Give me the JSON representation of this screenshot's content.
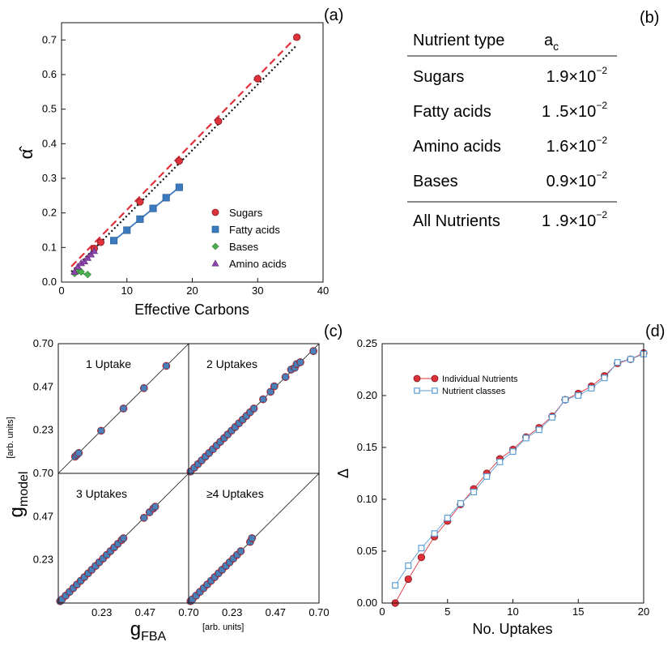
{
  "panel_labels": [
    "(a)",
    "(b)",
    "(c)",
    "(d)"
  ],
  "chart_data": [
    {
      "panel": "(a)",
      "type": "scatter",
      "xlabel": "Effective Carbons",
      "ylabel": "α̂",
      "xlim": [
        0,
        40
      ],
      "ylim": [
        0,
        0.75
      ],
      "xticks": [
        "0",
        "10",
        "20",
        "30",
        "40"
      ],
      "yticks": [
        "0.0",
        "0.1",
        "0.2",
        "0.3",
        "0.4",
        "0.5",
        "0.6",
        "0.7"
      ],
      "grid": false,
      "legend_position": "bottom-right",
      "series": [
        {
          "name": "Sugars",
          "marker": "circle",
          "color": "#e0303a",
          "x": [
            5,
            6,
            12,
            18,
            24,
            30,
            36
          ],
          "y": [
            0.097,
            0.115,
            0.232,
            0.35,
            0.465,
            0.588,
            0.708
          ]
        },
        {
          "name": "Fatty acids",
          "marker": "square",
          "color": "#3a7bbf",
          "x": [
            8,
            10,
            12,
            14,
            16,
            18
          ],
          "y": [
            0.12,
            0.15,
            0.182,
            0.213,
            0.244,
            0.274
          ]
        },
        {
          "name": "Bases",
          "marker": "diamond",
          "color": "#4caf50",
          "x": [
            2,
            2.5,
            3,
            4
          ],
          "y": [
            0.025,
            0.032,
            0.03,
            0.022
          ]
        },
        {
          "name": "Amino acids",
          "marker": "triangle",
          "color": "#8e44ad",
          "x": [
            2,
            2.5,
            3,
            3.5,
            4,
            4.5,
            5
          ],
          "y": [
            0.03,
            0.045,
            0.055,
            0.06,
            0.07,
            0.08,
            0.09
          ]
        }
      ],
      "fit_lines": [
        {
          "style": "dashed",
          "color": "#e0303a",
          "x": [
            1.5,
            36
          ],
          "y": [
            0.045,
            0.71
          ]
        },
        {
          "style": "dotted",
          "color": "#111111",
          "x": [
            1.5,
            36
          ],
          "y": [
            0.03,
            0.685
          ]
        },
        {
          "style": "solid",
          "color": "#3a7bbf",
          "x": [
            8,
            18
          ],
          "y": [
            0.12,
            0.274
          ]
        },
        {
          "style": "solid",
          "color": "#4caf50",
          "x": [
            2,
            4
          ],
          "y": [
            0.028,
            0.022
          ]
        }
      ]
    },
    {
      "panel": "(b)",
      "type": "table",
      "columns": [
        "Nutrient type",
        "a",
        "c"
      ],
      "rows": [
        {
          "name": "Sugars",
          "value": "1.9×10",
          "exp": "−2"
        },
        {
          "name": "Fatty acids",
          "value": "1 .5×10",
          "exp": "−2"
        },
        {
          "name": "Amino acids",
          "value": "1.6×10",
          "exp": "−2"
        },
        {
          "name": "Bases",
          "value": "0.9×10",
          "exp": "−2"
        }
      ],
      "total": {
        "name": "All Nutrients",
        "value": "1 .9×10",
        "exp": "−2"
      }
    },
    {
      "panel": "(c)",
      "type": "scatter",
      "xlabel_main": "g",
      "xlabel_sub": "FBA",
      "xlabel_unit": "[arb. units]",
      "ylabel_main": "g",
      "ylabel_sub": "model",
      "ylabel_unit": "[arb. units]",
      "lim": [
        0,
        0.7
      ],
      "ticks": [
        "0.23",
        "0.47",
        "0.70"
      ],
      "subplots": [
        {
          "title": "1 Uptake",
          "x": [
            0.09,
            0.1,
            0.11,
            0.23,
            0.35,
            0.46,
            0.58
          ],
          "y": [
            0.09,
            0.1,
            0.11,
            0.23,
            0.35,
            0.46,
            0.58
          ]
        },
        {
          "title": "2 Uptakes",
          "x": [
            0.01,
            0.03,
            0.05,
            0.07,
            0.09,
            0.11,
            0.13,
            0.15,
            0.17,
            0.19,
            0.21,
            0.23,
            0.25,
            0.27,
            0.29,
            0.31,
            0.33,
            0.35,
            0.4,
            0.44,
            0.46,
            0.52,
            0.55,
            0.57,
            0.58,
            0.6,
            0.67
          ],
          "y": [
            0.01,
            0.03,
            0.05,
            0.07,
            0.09,
            0.11,
            0.13,
            0.15,
            0.17,
            0.19,
            0.21,
            0.23,
            0.25,
            0.27,
            0.29,
            0.31,
            0.33,
            0.35,
            0.4,
            0.44,
            0.47,
            0.52,
            0.56,
            0.57,
            0.59,
            0.6,
            0.66
          ]
        },
        {
          "title": "3 Uptakes",
          "x": [
            0.01,
            0.02,
            0.04,
            0.06,
            0.08,
            0.1,
            0.12,
            0.14,
            0.16,
            0.18,
            0.2,
            0.22,
            0.24,
            0.26,
            0.28,
            0.3,
            0.32,
            0.34,
            0.35,
            0.46,
            0.49,
            0.51,
            0.52
          ],
          "y": [
            0.01,
            0.02,
            0.04,
            0.06,
            0.08,
            0.1,
            0.12,
            0.14,
            0.16,
            0.18,
            0.2,
            0.22,
            0.24,
            0.26,
            0.28,
            0.3,
            0.32,
            0.34,
            0.35,
            0.46,
            0.49,
            0.51,
            0.52
          ]
        },
        {
          "title": "≥4 Uptakes",
          "x": [
            0.01,
            0.02,
            0.04,
            0.06,
            0.08,
            0.1,
            0.12,
            0.14,
            0.16,
            0.18,
            0.2,
            0.22,
            0.24,
            0.26,
            0.28,
            0.33,
            0.34
          ],
          "y": [
            0.01,
            0.02,
            0.04,
            0.06,
            0.08,
            0.1,
            0.12,
            0.14,
            0.16,
            0.18,
            0.2,
            0.22,
            0.24,
            0.26,
            0.28,
            0.33,
            0.35
          ]
        }
      ]
    },
    {
      "panel": "(d)",
      "type": "line",
      "xlabel": "No. Uptakes",
      "ylabel": "Δ",
      "xlim": [
        0,
        20
      ],
      "ylim": [
        0,
        0.25
      ],
      "xticks": [
        "0",
        "5",
        "10",
        "15",
        "20"
      ],
      "yticks": [
        "0.00",
        "0.05",
        "0.10",
        "0.15",
        "0.20",
        "0.25"
      ],
      "x": [
        1,
        2,
        3,
        4,
        5,
        6,
        7,
        8,
        9,
        10,
        11,
        12,
        13,
        14,
        15,
        16,
        17,
        18,
        19,
        20
      ],
      "series": [
        {
          "name": "Individual Nutrients",
          "marker": "circle",
          "color": "#e0303a",
          "values": [
            0.0,
            0.023,
            0.044,
            0.064,
            0.079,
            0.095,
            0.11,
            0.125,
            0.139,
            0.148,
            0.16,
            0.169,
            0.18,
            0.196,
            0.202,
            0.209,
            0.219,
            0.231,
            0.235,
            0.241
          ]
        },
        {
          "name": "Nutrient classes",
          "marker": "open-square",
          "color": "#5b9fd6",
          "values": [
            0.017,
            0.036,
            0.053,
            0.067,
            0.082,
            0.096,
            0.107,
            0.122,
            0.136,
            0.146,
            0.159,
            0.167,
            0.179,
            0.196,
            0.2,
            0.207,
            0.217,
            0.232,
            0.235,
            0.24
          ]
        }
      ]
    }
  ]
}
